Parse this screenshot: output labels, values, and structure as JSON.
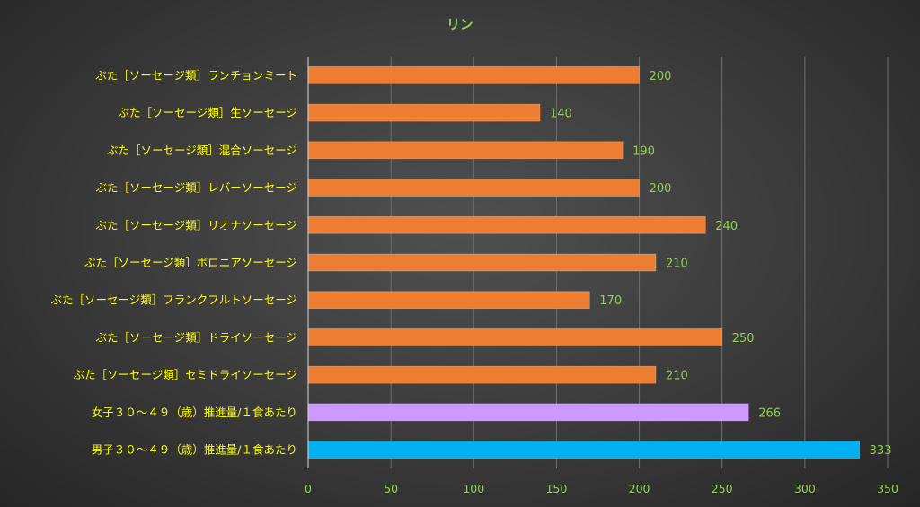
{
  "chart_data": {
    "type": "bar",
    "orientation": "horizontal",
    "title": "リン",
    "categories": [
      "ぶた［ソーセージ類］ランチョンミート",
      "ぶた［ソーセージ類］生ソーセージ",
      "ぶた［ソーセージ類］混合ソーセージ",
      "ぶた［ソーセージ類］レバーソーセージ",
      "ぶた［ソーセージ類］リオナソーセージ",
      "ぶた［ソーセージ類］ボロニアソーセージ",
      "ぶた［ソーセージ類］フランクフルトソーセージ",
      "ぶた［ソーセージ類］ドライソーセージ",
      "ぶた［ソーセージ類］セミドライソーセージ",
      "女子３０～４９（歳）推進量/１食あたり",
      "男子３０～４９（歳）推進量/１食あたり"
    ],
    "values": [
      200,
      140,
      190,
      200,
      240,
      210,
      170,
      250,
      210,
      266,
      333
    ],
    "bar_colors": [
      "#ed7d31",
      "#ed7d31",
      "#ed7d31",
      "#ed7d31",
      "#ed7d31",
      "#ed7d31",
      "#ed7d31",
      "#ed7d31",
      "#ed7d31",
      "#cc99ff",
      "#00b0f0"
    ],
    "xlim": [
      0,
      350
    ],
    "xticks": [
      0,
      50,
      100,
      150,
      200,
      250,
      300,
      350
    ],
    "grid": true,
    "legend": "none",
    "colors": {
      "title": "#92d050",
      "category_label": "#ffff00",
      "tick_label": "#92d050",
      "value_label": "#92d050",
      "gridline": "#6e6e6e",
      "axis": "#d9d9d9"
    }
  }
}
